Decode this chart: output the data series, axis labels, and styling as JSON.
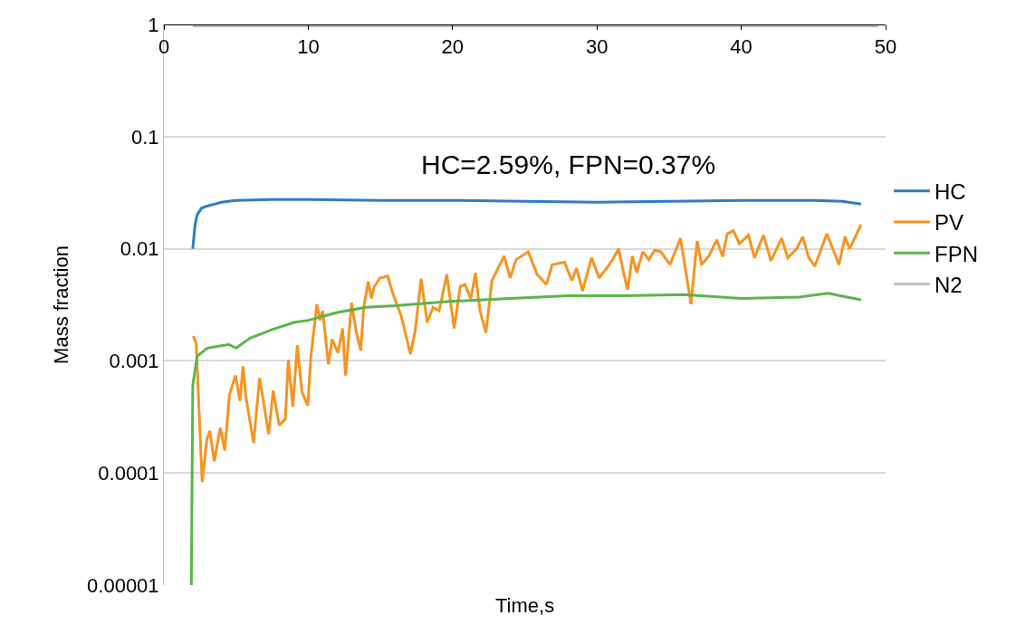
{
  "chart_data": {
    "type": "line",
    "xlabel": "Time,s",
    "ylabel": "Mass fraction",
    "log": "y",
    "grid": "y",
    "legend": "right",
    "marker": "none",
    "line_style": "solid",
    "xlim": [
      0,
      50
    ],
    "xticks": [
      0,
      10,
      20,
      30,
      40,
      50
    ],
    "ylim": [
      1e-05,
      1
    ],
    "yticks": [
      {
        "value": 1e-05,
        "label": "0.00001"
      },
      {
        "value": 0.0001,
        "label": "0.0001"
      },
      {
        "value": 0.001,
        "label": "0.001"
      },
      0.01,
      0.1,
      1
    ],
    "annotations": [
      "HC=2.59%, FPN=0.37%"
    ],
    "series": [
      {
        "name": "HC",
        "color": "#2e7dc4",
        "x": [
          2.0,
          2.15,
          2.3,
          2.6,
          3.0,
          3.5,
          4.0,
          5.0,
          7.5,
          10,
          15,
          20,
          25,
          30,
          35,
          40,
          45,
          47,
          48.3
        ],
        "values": [
          0.01,
          0.016,
          0.02,
          0.023,
          0.024,
          0.025,
          0.026,
          0.027,
          0.0275,
          0.0275,
          0.027,
          0.027,
          0.0265,
          0.026,
          0.0265,
          0.027,
          0.027,
          0.0265,
          0.025
        ]
      },
      {
        "name": "PV",
        "color": "#f7931e",
        "x": [
          2.03,
          2.24,
          2.65,
          2.97,
          3.18,
          3.49,
          3.91,
          4.22,
          4.54,
          4.96,
          5.27,
          5.48,
          5.69,
          6.21,
          6.63,
          7.26,
          7.57,
          7.99,
          8.41,
          8.62,
          8.93,
          9.24,
          9.56,
          9.97,
          10.18,
          10.6,
          10.81,
          11.0,
          11.4,
          11.65,
          12.06,
          12.38,
          12.59,
          13.0,
          13.32,
          13.64,
          13.84,
          14.16,
          14.37,
          14.57,
          14.99,
          15.51,
          15.83,
          16.45,
          17.08,
          17.4,
          17.82,
          18.24,
          18.65,
          19.07,
          19.6,
          20.11,
          20.53,
          20.85,
          21.27,
          21.58,
          21.9,
          22.31,
          22.73,
          23.05,
          23.57,
          23.99,
          24.4,
          25.24,
          25.86,
          26.5,
          26.9,
          27.75,
          28.27,
          28.59,
          29.0,
          29.63,
          30.15,
          30.67,
          31.09,
          31.51,
          31.82,
          32.13,
          32.45,
          32.76,
          33.18,
          33.6,
          34.0,
          34.43,
          35.06,
          35.79,
          36.52,
          36.94,
          37.25,
          37.77,
          38.3,
          38.71,
          39.03,
          39.45,
          39.87,
          40.5,
          40.91,
          41.54,
          42.06,
          42.8,
          43.22,
          43.84,
          44.26,
          44.68,
          45.1,
          45.93,
          46.77,
          47.19,
          47.5,
          48.3
        ],
        "values": [
          0.00166,
          0.00142,
          8.3e-05,
          0.000196,
          0.000237,
          0.000127,
          0.000253,
          0.000159,
          0.000497,
          0.00074,
          0.00044,
          0.000895,
          0.00047,
          0.000185,
          0.000703,
          0.000222,
          0.000545,
          0.000267,
          0.000302,
          0.00102,
          0.00039,
          0.00138,
          0.00053,
          0.0004,
          0.00108,
          0.0032,
          0.0023,
          0.0028,
          0.00093,
          0.00156,
          0.00118,
          0.00195,
          0.00074,
          0.0033,
          0.00182,
          0.00123,
          0.003,
          0.0051,
          0.0036,
          0.0046,
          0.0055,
          0.0057,
          0.0041,
          0.0025,
          0.00115,
          0.00182,
          0.0054,
          0.0022,
          0.003,
          0.0028,
          0.0059,
          0.00195,
          0.0046,
          0.0048,
          0.0036,
          0.0061,
          0.0028,
          0.00178,
          0.0052,
          0.0063,
          0.0086,
          0.0055,
          0.008,
          0.0094,
          0.0059,
          0.0048,
          0.0072,
          0.0076,
          0.0052,
          0.0067,
          0.0042,
          0.0083,
          0.0055,
          0.0067,
          0.008,
          0.01,
          0.0063,
          0.0043,
          0.0086,
          0.0061,
          0.0094,
          0.008,
          0.0097,
          0.0094,
          0.0072,
          0.0124,
          0.0032,
          0.0117,
          0.0072,
          0.0087,
          0.012,
          0.0085,
          0.0136,
          0.0145,
          0.0111,
          0.0132,
          0.0083,
          0.0132,
          0.0078,
          0.0124,
          0.0083,
          0.01,
          0.0128,
          0.0083,
          0.007,
          0.0136,
          0.0072,
          0.0128,
          0.01,
          0.0164
        ]
      },
      {
        "name": "FPN",
        "color": "#5ab54a",
        "x": [
          1.9,
          2.0,
          2.3,
          3.0,
          4.5,
          5.0,
          6.0,
          7.5,
          9.0,
          10,
          12,
          14,
          16,
          20,
          24,
          28,
          32,
          36,
          40,
          44,
          46,
          48.3
        ],
        "values": [
          1e-05,
          0.0006,
          0.0011,
          0.0013,
          0.0014,
          0.0013,
          0.0016,
          0.0019,
          0.0022,
          0.0023,
          0.0027,
          0.003,
          0.0031,
          0.0034,
          0.0036,
          0.0038,
          0.0038,
          0.0039,
          0.0036,
          0.0037,
          0.004,
          0.0035
        ]
      },
      {
        "name": "N2",
        "color": "#bfbfbf",
        "x": [
          2.0,
          49.5
        ],
        "values": [
          0.97,
          0.97
        ]
      }
    ]
  }
}
